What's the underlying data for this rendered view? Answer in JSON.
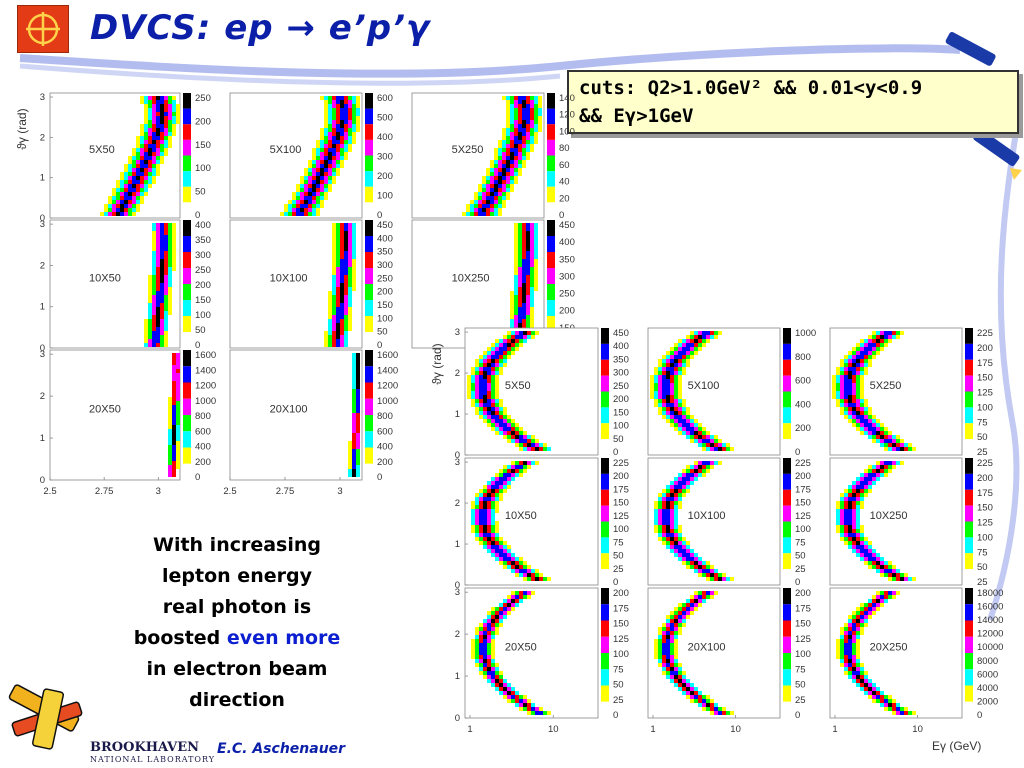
{
  "slide": {
    "title": "DVCS: ep → e’p’γ",
    "cuts_line1": "cuts: Q2>1.0GeV² && 0.01<y<0.9",
    "cuts_line2": "&& Eγ>1GeV",
    "bullet_lines": [
      "With increasing",
      "lepton energy",
      "real photon is"
    ],
    "bullet_boosted": "boosted",
    "bullet_highlight": "even more",
    "bullet_lines_end": [
      "in electron beam",
      "direction"
    ],
    "highlight_color": "#0b1fd0",
    "author": "E.C. Aschenauer",
    "lab_name": "BROOKHAVEN",
    "lab_subtitle": "NATIONAL LABORATORY"
  },
  "chart_data": [
    {
      "type": "heatmap",
      "title": "",
      "ylabel": "ϑγ (rad)",
      "xlabel": "",
      "x_ticks": [
        "2.5",
        "2.75",
        "3"
      ],
      "y_ticks": [
        "0",
        "1",
        "2",
        "3"
      ],
      "xlim": [
        2.5,
        3.1
      ],
      "ylim": [
        0,
        3.1
      ],
      "palette": [
        "#ffffff",
        "#ffff00",
        "#00ffff",
        "#00ff00",
        "#ff00ff",
        "#ff0000",
        "#0000ff",
        "#000000"
      ],
      "panels": [
        {
          "label": "5X50",
          "colorbar_ticks": [
            "250",
            "200",
            "150",
            "100",
            "50",
            "0"
          ]
        },
        {
          "label": "5X100",
          "colorbar_ticks": [
            "600",
            "500",
            "400",
            "300",
            "200",
            "100",
            "0"
          ]
        },
        {
          "label": "5X250",
          "colorbar_ticks": [
            "140",
            "120",
            "100",
            "80",
            "60",
            "40",
            "20",
            "0"
          ]
        },
        {
          "label": "10X50",
          "colorbar_ticks": [
            "400",
            "350",
            "300",
            "250",
            "200",
            "150",
            "100",
            "50",
            "0"
          ]
        },
        {
          "label": "10X100",
          "colorbar_ticks": [
            "450",
            "400",
            "350",
            "300",
            "250",
            "200",
            "150",
            "100",
            "50",
            "0"
          ]
        },
        {
          "label": "10X250",
          "colorbar_ticks": [
            "450",
            "400",
            "350",
            "300",
            "250",
            "200",
            "150",
            "100"
          ]
        },
        {
          "label": "20X50",
          "colorbar_ticks": [
            "1600",
            "1400",
            "1200",
            "1000",
            "800",
            "600",
            "400",
            "200",
            "0"
          ]
        },
        {
          "label": "20X100",
          "colorbar_ticks": [
            "1600",
            "1400",
            "1200",
            "1000",
            "800",
            "600",
            "400",
            "200",
            "0"
          ]
        }
      ]
    },
    {
      "type": "heatmap",
      "title": "",
      "ylabel": "ϑγ (rad)",
      "xlabel": "Eγ (GeV)",
      "x_scale": "log",
      "x_ticks": [
        "1",
        "10"
      ],
      "y_ticks": [
        "0",
        "1",
        "2",
        "3"
      ],
      "xlim": [
        1,
        30
      ],
      "ylim": [
        0,
        3.1
      ],
      "palette": [
        "#ffffff",
        "#ffff00",
        "#00ffff",
        "#00ff00",
        "#ff00ff",
        "#ff0000",
        "#0000ff",
        "#000000"
      ],
      "panels": [
        {
          "label": "5X50",
          "colorbar_ticks": [
            "450",
            "400",
            "350",
            "300",
            "250",
            "200",
            "150",
            "100",
            "50",
            "0"
          ]
        },
        {
          "label": "5X100",
          "colorbar_ticks": [
            "1000",
            "800",
            "600",
            "400",
            "200",
            "0"
          ]
        },
        {
          "label": "5X250",
          "colorbar_ticks": [
            "225",
            "200",
            "175",
            "150",
            "125",
            "100",
            "75",
            "50",
            "25"
          ]
        },
        {
          "label": "10X50",
          "colorbar_ticks": [
            "225",
            "200",
            "175",
            "150",
            "125",
            "100",
            "75",
            "50",
            "25",
            "0"
          ]
        },
        {
          "label": "10X100",
          "colorbar_ticks": [
            "225",
            "200",
            "175",
            "150",
            "125",
            "100",
            "75",
            "50",
            "25",
            "0"
          ]
        },
        {
          "label": "10X250",
          "colorbar_ticks": [
            "225",
            "200",
            "175",
            "150",
            "125",
            "100",
            "75",
            "50",
            "25"
          ]
        },
        {
          "label": "20X50",
          "colorbar_ticks": [
            "200",
            "175",
            "150",
            "125",
            "100",
            "75",
            "50",
            "25",
            "0"
          ]
        },
        {
          "label": "20X100",
          "colorbar_ticks": [
            "200",
            "175",
            "150",
            "125",
            "100",
            "75",
            "50",
            "25",
            "0"
          ]
        },
        {
          "label": "20X250",
          "colorbar_ticks": [
            "18000",
            "16000",
            "14000",
            "12000",
            "10000",
            "8000",
            "6000",
            "4000",
            "2000",
            "0"
          ]
        }
      ]
    }
  ]
}
